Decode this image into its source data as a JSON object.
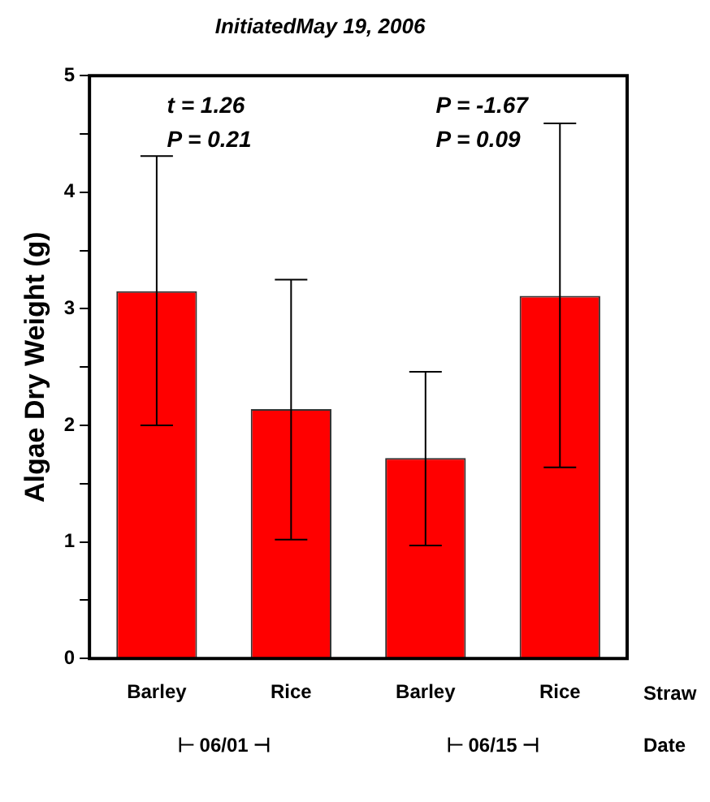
{
  "chart_data": {
    "type": "bar",
    "title": "InitiatedMay 19, 2006",
    "ylabel": "Algae Dry Weight (g)",
    "categories": [
      "Barley",
      "Rice",
      "Barley",
      "Rice"
    ],
    "values": [
      3.15,
      2.14,
      1.72,
      3.11
    ],
    "errors": [
      [
        2.0,
        4.31
      ],
      [
        1.02,
        3.25
      ],
      [
        0.97,
        2.46
      ],
      [
        1.64,
        4.59
      ]
    ],
    "color": "#ff0000",
    "ylim": [
      0,
      5
    ],
    "yticks": [
      0,
      {
        "value": 0.5,
        "label": null
      },
      1,
      {
        "value": 1.5,
        "label": null
      },
      2,
      {
        "value": 2.5,
        "label": null
      },
      3,
      {
        "value": 3.5,
        "label": null
      },
      4,
      {
        "value": 4.5,
        "label": null
      },
      5
    ],
    "grid": false,
    "legend": false,
    "annotations": [
      "t = 1.26\nP = 0.21",
      "P = -1.67\nP = 0.09",
      "⊢ 06/01 ⊣",
      "⊢ 06/15 ⊣",
      "Straw",
      "Date"
    ]
  }
}
